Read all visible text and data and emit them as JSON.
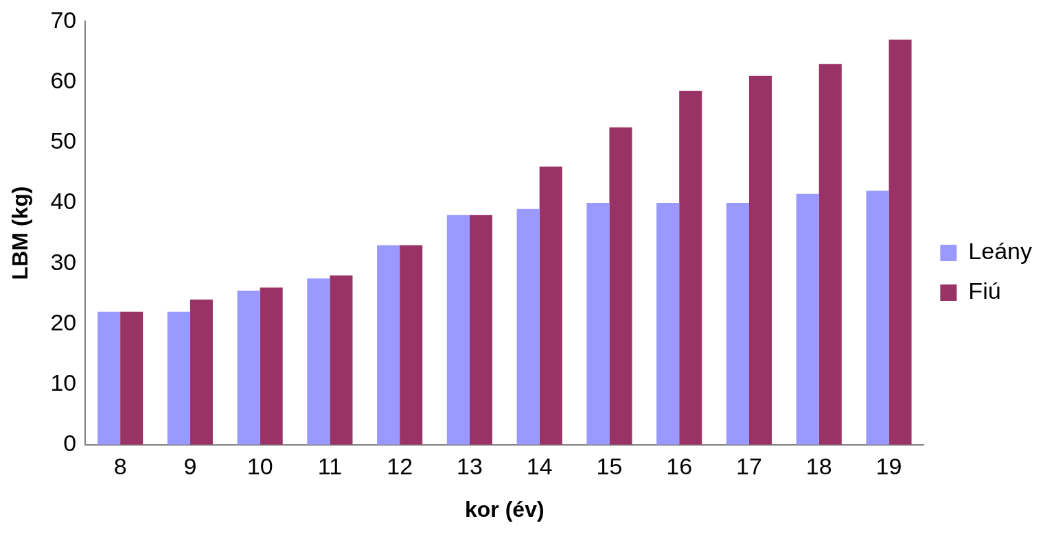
{
  "chart_data": {
    "type": "bar",
    "xlabel": "kor (év)",
    "ylabel": "LBM (kg)",
    "categories": [
      "8",
      "9",
      "10",
      "11",
      "12",
      "13",
      "14",
      "15",
      "16",
      "17",
      "18",
      "19"
    ],
    "series": [
      {
        "name": "Leány",
        "color": "#9999ff",
        "values": [
          22,
          22,
          25.5,
          27.5,
          33,
          38,
          39,
          40,
          40,
          40,
          41.5,
          42
        ]
      },
      {
        "name": "Fiú",
        "color": "#993366",
        "values": [
          22,
          24,
          26,
          28,
          33,
          38,
          46,
          52.5,
          58.5,
          61,
          63,
          67
        ]
      }
    ],
    "ylim": [
      0,
      70
    ],
    "yticks": [
      0,
      10,
      20,
      30,
      40,
      50,
      60,
      70
    ],
    "grid": false,
    "legend": "right"
  }
}
